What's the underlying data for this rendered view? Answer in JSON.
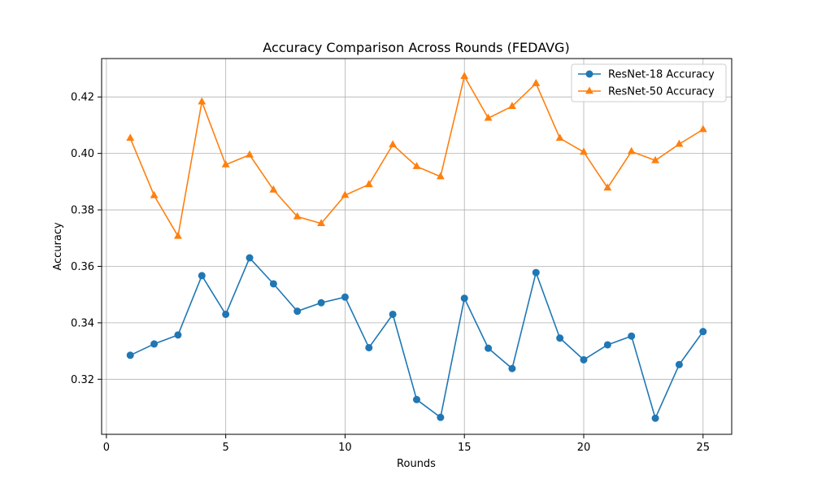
{
  "chart_data": {
    "type": "line",
    "title": "Accuracy Comparison Across Rounds (FEDAVG)",
    "xlabel": "Rounds",
    "ylabel": "Accuracy",
    "xlim": [
      -0.2,
      26.2
    ],
    "ylim": [
      0.3005,
      0.4336
    ],
    "xticks": [
      0,
      5,
      10,
      15,
      20,
      25
    ],
    "yticks": [
      0.32,
      0.34,
      0.36,
      0.38,
      0.4,
      0.42
    ],
    "grid": true,
    "legend_position": "top-right",
    "x": [
      1,
      2,
      3,
      4,
      5,
      6,
      7,
      8,
      9,
      10,
      11,
      12,
      13,
      14,
      15,
      16,
      17,
      18,
      19,
      20,
      21,
      22,
      23,
      24,
      25
    ],
    "series": [
      {
        "name": "ResNet-18 Accuracy",
        "color": "#1f77b4",
        "marker": "circle",
        "values": [
          0.3285,
          0.3325,
          0.3357,
          0.3567,
          0.343,
          0.363,
          0.3538,
          0.3441,
          0.3471,
          0.3491,
          0.3312,
          0.343,
          0.3128,
          0.3065,
          0.3487,
          0.331,
          0.3238,
          0.3578,
          0.3346,
          0.3269,
          0.3322,
          0.3353,
          0.3062,
          0.3252,
          0.3369
        ]
      },
      {
        "name": "ResNet-50 Accuracy",
        "color": "#ff7f0e",
        "marker": "triangle",
        "values": [
          0.4054,
          0.3851,
          0.3707,
          0.4183,
          0.396,
          0.3995,
          0.3871,
          0.3776,
          0.3752,
          0.3852,
          0.389,
          0.4031,
          0.3954,
          0.3918,
          0.4273,
          0.4125,
          0.4167,
          0.4248,
          0.4054,
          0.4005,
          0.3878,
          0.4007,
          0.3975,
          0.4033,
          0.4085
        ]
      }
    ]
  }
}
